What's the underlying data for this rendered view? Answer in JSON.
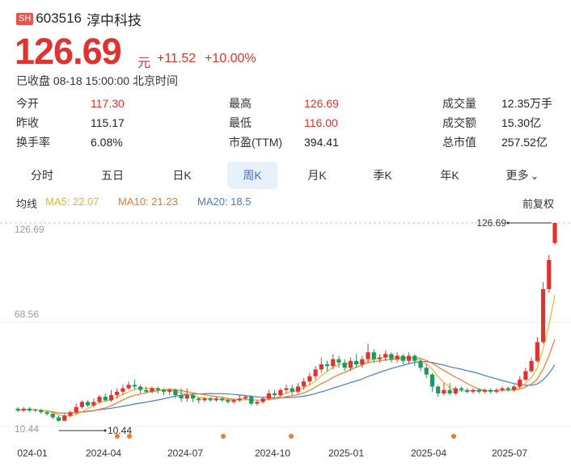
{
  "header": {
    "exchange_badge": "SH",
    "code": "603516",
    "name": "淳中科技"
  },
  "quote": {
    "price": "126.69",
    "unit": "元",
    "change": "+11.52",
    "change_pct": "+10.00%",
    "status": "已收盘 08-18 15:00:00 北京时间"
  },
  "stats": [
    {
      "label": "今开",
      "value": "117.30",
      "color": "red"
    },
    {
      "label": "昨收",
      "value": "115.17",
      "color": "dark"
    },
    {
      "label": "换手率",
      "value": "6.08%",
      "color": "dark"
    },
    {
      "label": "最高",
      "value": "126.69",
      "color": "red"
    },
    {
      "label": "最低",
      "value": "116.00",
      "color": "red"
    },
    {
      "label": "市盈(TTM)",
      "value": "394.41",
      "color": "dark"
    },
    {
      "label": "成交量",
      "value": "12.35万手",
      "color": "dark"
    },
    {
      "label": "成交额",
      "value": "15.30亿",
      "color": "dark"
    },
    {
      "label": "总市值",
      "value": "257.52亿",
      "color": "dark"
    }
  ],
  "tabs": [
    "分时",
    "五日",
    "日K",
    "周K",
    "月K",
    "季K",
    "年K",
    "更多"
  ],
  "active_tab": "周K",
  "indicators": {
    "label": "均线",
    "ma5": "MA5: 22.07",
    "ma10": "MA10: 21.23",
    "ma20": "MA20: 18.5",
    "adjust": "前复权"
  },
  "colors": {
    "up": "#e0332f",
    "down": "#1a9a5e",
    "ma5": "#f0b429",
    "ma10": "#f07a2a",
    "ma20": "#4a78d8",
    "event_dot": "#f07a2a"
  },
  "chart_data": {
    "type": "candlestick",
    "y_axis_labels": [
      "126.69",
      "68.56",
      "10.44"
    ],
    "ylim": [
      10.44,
      126.69
    ],
    "x_tick_labels": [
      "024-01",
      "2024-04",
      "2024-07",
      "2024-10",
      "2025-01",
      "2025-04",
      "2025-07"
    ],
    "x_start": "2024-01",
    "max_marker": "126.69",
    "min_marker": "10.44",
    "candles": [
      {
        "x": 0,
        "o": 18,
        "c": 17,
        "h": 19,
        "l": 16
      },
      {
        "x": 1,
        "o": 17,
        "c": 18,
        "h": 19,
        "l": 16
      },
      {
        "x": 2,
        "o": 18,
        "c": 17,
        "h": 19,
        "l": 16
      },
      {
        "x": 3,
        "o": 17,
        "c": 17.5,
        "h": 18,
        "l": 16
      },
      {
        "x": 4,
        "o": 17,
        "c": 16,
        "h": 18,
        "l": 15
      },
      {
        "x": 5,
        "o": 16,
        "c": 15,
        "h": 17,
        "l": 14
      },
      {
        "x": 6,
        "o": 15,
        "c": 13,
        "h": 16,
        "l": 12
      },
      {
        "x": 7,
        "o": 13,
        "c": 11,
        "h": 14,
        "l": 10.44
      },
      {
        "x": 8,
        "o": 11,
        "c": 14,
        "h": 15,
        "l": 11
      },
      {
        "x": 9,
        "o": 14,
        "c": 16,
        "h": 17,
        "l": 13
      },
      {
        "x": 10,
        "o": 16,
        "c": 19,
        "h": 21,
        "l": 15
      },
      {
        "x": 11,
        "o": 19,
        "c": 22,
        "h": 23,
        "l": 18
      },
      {
        "x": 12,
        "o": 22,
        "c": 20,
        "h": 23,
        "l": 19
      },
      {
        "x": 13,
        "o": 20,
        "c": 22,
        "h": 24,
        "l": 19
      },
      {
        "x": 14,
        "o": 22,
        "c": 25,
        "h": 26,
        "l": 21
      },
      {
        "x": 15,
        "o": 25,
        "c": 23,
        "h": 27,
        "l": 22
      },
      {
        "x": 16,
        "o": 23,
        "c": 26,
        "h": 29,
        "l": 22
      },
      {
        "x": 17,
        "o": 26,
        "c": 28,
        "h": 30,
        "l": 24
      },
      {
        "x": 18,
        "o": 28,
        "c": 30,
        "h": 32,
        "l": 26
      },
      {
        "x": 19,
        "o": 30,
        "c": 32,
        "h": 34,
        "l": 29
      },
      {
        "x": 20,
        "o": 32,
        "c": 31,
        "h": 35,
        "l": 29
      },
      {
        "x": 21,
        "o": 31,
        "c": 29,
        "h": 32,
        "l": 27
      },
      {
        "x": 22,
        "o": 29,
        "c": 28,
        "h": 31,
        "l": 27
      },
      {
        "x": 23,
        "o": 28,
        "c": 30,
        "h": 31,
        "l": 27
      },
      {
        "x": 24,
        "o": 30,
        "c": 29,
        "h": 31,
        "l": 27
      },
      {
        "x": 25,
        "o": 29,
        "c": 28,
        "h": 30,
        "l": 26
      },
      {
        "x": 26,
        "o": 28,
        "c": 29,
        "h": 30,
        "l": 26
      },
      {
        "x": 27,
        "o": 29,
        "c": 26,
        "h": 30,
        "l": 24
      },
      {
        "x": 28,
        "o": 26,
        "c": 24,
        "h": 30,
        "l": 22
      },
      {
        "x": 29,
        "o": 24,
        "c": 26,
        "h": 30,
        "l": 22
      },
      {
        "x": 30,
        "o": 26,
        "c": 24,
        "h": 27,
        "l": 22
      },
      {
        "x": 31,
        "o": 24,
        "c": 23,
        "h": 25,
        "l": 21
      },
      {
        "x": 32,
        "o": 23,
        "c": 24,
        "h": 25,
        "l": 22
      },
      {
        "x": 33,
        "o": 24,
        "c": 23,
        "h": 25,
        "l": 22
      },
      {
        "x": 34,
        "o": 23,
        "c": 24,
        "h": 25,
        "l": 22
      },
      {
        "x": 35,
        "o": 24,
        "c": 23,
        "h": 25,
        "l": 22
      },
      {
        "x": 36,
        "o": 23,
        "c": 22,
        "h": 24,
        "l": 21
      },
      {
        "x": 37,
        "o": 22,
        "c": 23,
        "h": 24,
        "l": 21
      },
      {
        "x": 38,
        "o": 23,
        "c": 24,
        "h": 26,
        "l": 22
      },
      {
        "x": 39,
        "o": 24,
        "c": 25,
        "h": 26,
        "l": 23
      },
      {
        "x": 40,
        "o": 25,
        "c": 21,
        "h": 26,
        "l": 20
      },
      {
        "x": 41,
        "o": 21,
        "c": 22,
        "h": 23,
        "l": 20
      },
      {
        "x": 42,
        "o": 22,
        "c": 24,
        "h": 25,
        "l": 21
      },
      {
        "x": 43,
        "o": 24,
        "c": 27,
        "h": 29,
        "l": 23
      },
      {
        "x": 44,
        "o": 27,
        "c": 26,
        "h": 29,
        "l": 24
      },
      {
        "x": 45,
        "o": 26,
        "c": 29,
        "h": 30,
        "l": 25
      },
      {
        "x": 46,
        "o": 29,
        "c": 30,
        "h": 32,
        "l": 27
      },
      {
        "x": 47,
        "o": 30,
        "c": 28,
        "h": 32,
        "l": 26
      },
      {
        "x": 48,
        "o": 28,
        "c": 31,
        "h": 33,
        "l": 27
      },
      {
        "x": 49,
        "o": 31,
        "c": 34,
        "h": 36,
        "l": 29
      },
      {
        "x": 50,
        "o": 34,
        "c": 37,
        "h": 39,
        "l": 32
      },
      {
        "x": 51,
        "o": 37,
        "c": 41,
        "h": 43,
        "l": 35
      },
      {
        "x": 52,
        "o": 41,
        "c": 44,
        "h": 48,
        "l": 39
      },
      {
        "x": 53,
        "o": 44,
        "c": 43,
        "h": 46,
        "l": 40
      },
      {
        "x": 54,
        "o": 43,
        "c": 47,
        "h": 50,
        "l": 41
      },
      {
        "x": 55,
        "o": 47,
        "c": 45,
        "h": 49,
        "l": 42
      },
      {
        "x": 56,
        "o": 45,
        "c": 42,
        "h": 47,
        "l": 40
      },
      {
        "x": 57,
        "o": 42,
        "c": 46,
        "h": 48,
        "l": 40
      },
      {
        "x": 58,
        "o": 46,
        "c": 44,
        "h": 50,
        "l": 42
      },
      {
        "x": 59,
        "o": 44,
        "c": 47,
        "h": 49,
        "l": 42
      },
      {
        "x": 60,
        "o": 47,
        "c": 51,
        "h": 56,
        "l": 45
      },
      {
        "x": 61,
        "o": 51,
        "c": 47,
        "h": 53,
        "l": 45
      },
      {
        "x": 62,
        "o": 47,
        "c": 48,
        "h": 50,
        "l": 45
      },
      {
        "x": 63,
        "o": 48,
        "c": 50,
        "h": 52,
        "l": 46
      },
      {
        "x": 64,
        "o": 50,
        "c": 47,
        "h": 51,
        "l": 45
      },
      {
        "x": 65,
        "o": 47,
        "c": 49,
        "h": 51,
        "l": 45
      },
      {
        "x": 66,
        "o": 49,
        "c": 46,
        "h": 50,
        "l": 44
      },
      {
        "x": 67,
        "o": 46,
        "c": 49,
        "h": 51,
        "l": 44
      },
      {
        "x": 68,
        "o": 49,
        "c": 46,
        "h": 50,
        "l": 43
      },
      {
        "x": 69,
        "o": 46,
        "c": 42,
        "h": 47,
        "l": 40
      },
      {
        "x": 70,
        "o": 42,
        "c": 38,
        "h": 44,
        "l": 36
      },
      {
        "x": 71,
        "o": 38,
        "c": 31,
        "h": 39,
        "l": 28
      },
      {
        "x": 72,
        "o": 31,
        "c": 27,
        "h": 32,
        "l": 25
      },
      {
        "x": 73,
        "o": 27,
        "c": 29,
        "h": 33,
        "l": 26
      },
      {
        "x": 74,
        "o": 29,
        "c": 27,
        "h": 33,
        "l": 26
      },
      {
        "x": 75,
        "o": 27,
        "c": 30,
        "h": 31,
        "l": 26
      },
      {
        "x": 76,
        "o": 30,
        "c": 29,
        "h": 31,
        "l": 28
      },
      {
        "x": 77,
        "o": 29,
        "c": 28,
        "h": 30,
        "l": 27
      },
      {
        "x": 78,
        "o": 28,
        "c": 29,
        "h": 30,
        "l": 27
      },
      {
        "x": 79,
        "o": 29,
        "c": 28,
        "h": 30,
        "l": 27
      },
      {
        "x": 80,
        "o": 28,
        "c": 29,
        "h": 30,
        "l": 27
      },
      {
        "x": 81,
        "o": 29,
        "c": 28,
        "h": 30,
        "l": 27
      },
      {
        "x": 82,
        "o": 28,
        "c": 29,
        "h": 30,
        "l": 27
      },
      {
        "x": 83,
        "o": 29,
        "c": 30,
        "h": 31,
        "l": 28
      },
      {
        "x": 84,
        "o": 30,
        "c": 29,
        "h": 31,
        "l": 28
      },
      {
        "x": 85,
        "o": 29,
        "c": 31,
        "h": 32,
        "l": 28
      },
      {
        "x": 86,
        "o": 31,
        "c": 35,
        "h": 37,
        "l": 30
      },
      {
        "x": 87,
        "o": 35,
        "c": 40,
        "h": 42,
        "l": 34
      },
      {
        "x": 88,
        "o": 40,
        "c": 46,
        "h": 48,
        "l": 39
      },
      {
        "x": 89,
        "o": 46,
        "c": 57,
        "h": 60,
        "l": 45
      },
      {
        "x": 90,
        "o": 57,
        "c": 88,
        "h": 92,
        "l": 56
      },
      {
        "x": 91,
        "o": 88,
        "c": 105,
        "h": 108,
        "l": 86
      },
      {
        "x": 92,
        "o": 115,
        "c": 126.69,
        "h": 126.69,
        "l": 114
      }
    ]
  },
  "event_markers": [
    "2024-04",
    "2024-04",
    "2024-07",
    "2024-10",
    "2025-05"
  ]
}
